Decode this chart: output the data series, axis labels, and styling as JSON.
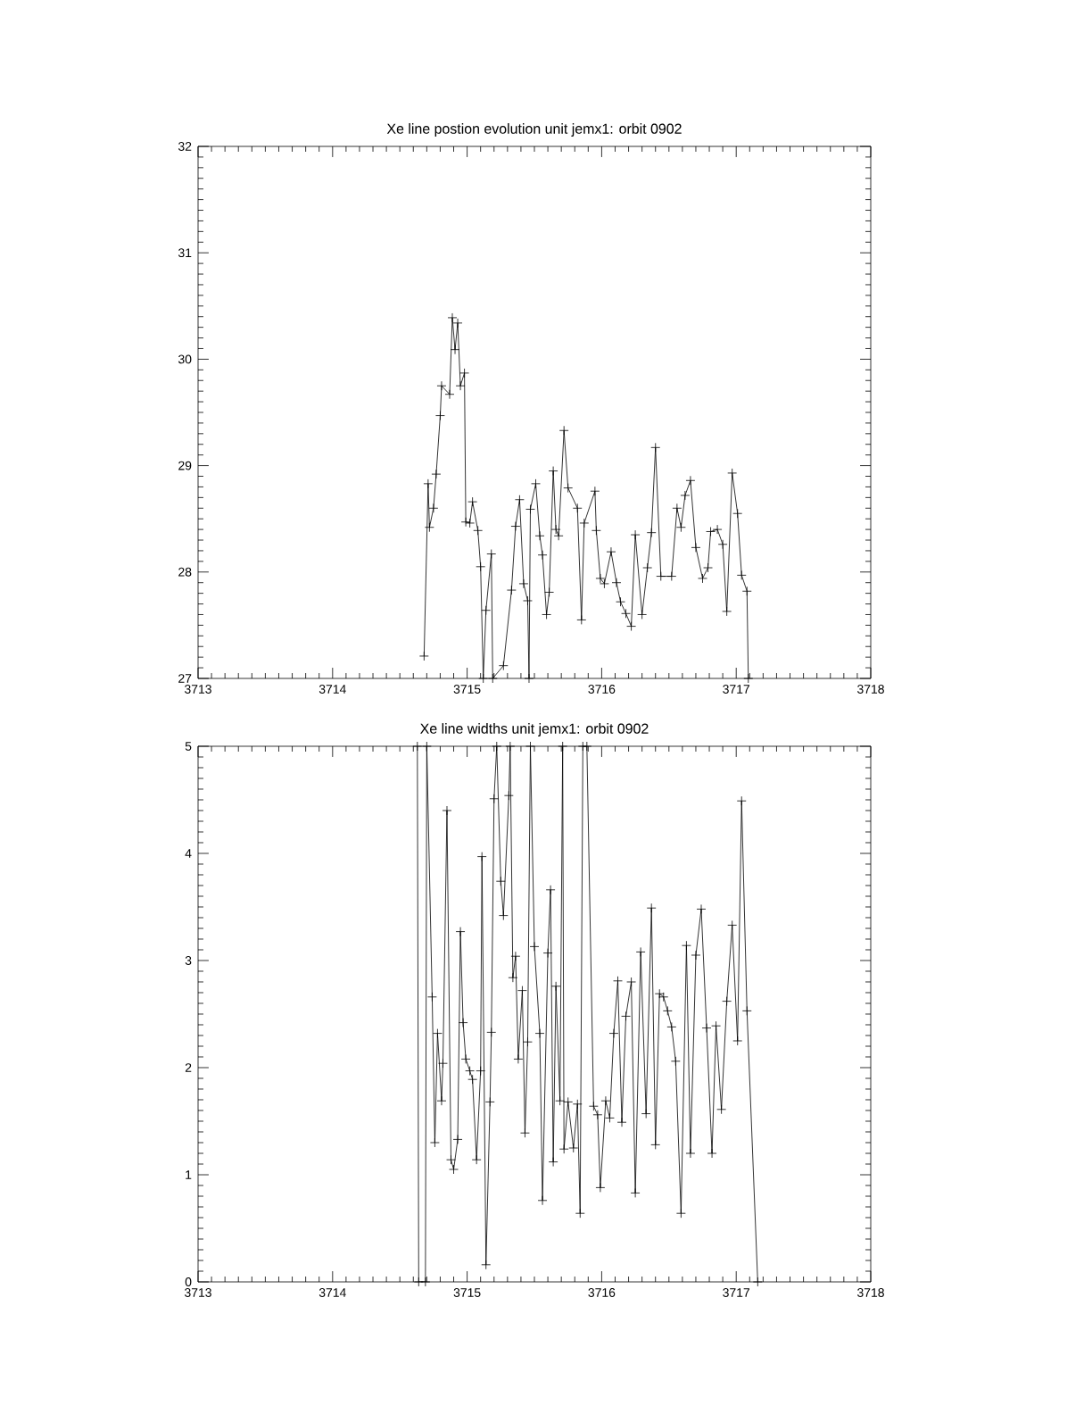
{
  "chart_data": [
    {
      "type": "line",
      "title": "Xe line postion evolution unit jemx1: orbit 0902",
      "color": "#000000",
      "marker": "cross",
      "line_style": "solid",
      "xlim": [
        3713,
        3718
      ],
      "ylim": [
        27,
        32
      ],
      "xticks": [
        3713,
        3714,
        3715,
        3716,
        3717,
        3718
      ],
      "yticks": [
        27,
        28,
        29,
        30,
        31,
        32
      ],
      "x": [
        3714.68,
        3714.71,
        3714.72,
        3714.75,
        3714.77,
        3714.8,
        3714.81,
        3714.87,
        3714.89,
        3714.91,
        3714.93,
        3714.95,
        3714.98,
        3714.99,
        3715.02,
        3715.04,
        3715.08,
        3715.1,
        3715.12,
        3715.14,
        3715.18,
        3715.19,
        3715.27,
        3715.33,
        3715.36,
        3715.39,
        3715.42,
        3715.45,
        3715.46,
        3715.47,
        3715.51,
        3715.54,
        3715.56,
        3715.59,
        3715.61,
        3715.64,
        3715.66,
        3715.68,
        3715.72,
        3715.75,
        3715.82,
        3715.85,
        3715.87,
        3715.95,
        3715.96,
        3715.99,
        3716.02,
        3716.07,
        3716.11,
        3716.14,
        3716.18,
        3716.22,
        3716.25,
        3716.3,
        3716.34,
        3716.37,
        3716.4,
        3716.44,
        3716.52,
        3716.56,
        3716.59,
        3716.62,
        3716.66,
        3716.7,
        3716.75,
        3716.79,
        3716.81,
        3716.86,
        3716.9,
        3716.93,
        3716.97,
        3717.01,
        3717.04,
        3717.08,
        3717.09
      ],
      "values": [
        27.21,
        28.83,
        28.42,
        28.6,
        28.92,
        29.47,
        29.75,
        29.67,
        30.39,
        30.09,
        30.34,
        29.75,
        29.87,
        28.47,
        28.46,
        28.66,
        28.39,
        28.05,
        27.0,
        27.64,
        28.17,
        27.0,
        27.12,
        27.83,
        28.43,
        28.68,
        27.89,
        27.73,
        27.0,
        28.59,
        28.83,
        28.34,
        28.16,
        27.6,
        27.81,
        28.95,
        28.4,
        28.34,
        29.33,
        28.79,
        28.6,
        27.55,
        28.46,
        28.76,
        28.39,
        27.94,
        27.89,
        28.19,
        27.9,
        27.72,
        27.61,
        27.49,
        28.35,
        27.6,
        28.04,
        28.37,
        29.17,
        27.96,
        27.96,
        28.6,
        28.42,
        28.72,
        28.86,
        28.23,
        27.94,
        28.04,
        28.38,
        28.4,
        28.26,
        27.63,
        28.93,
        28.55,
        27.97,
        27.82,
        27.0
      ]
    },
    {
      "type": "line",
      "title": "Xe line widths unit jemx1: orbit 0902",
      "color": "#000000",
      "marker": "cross",
      "line_style": "solid",
      "xlim": [
        3713,
        3718
      ],
      "ylim": [
        0,
        5
      ],
      "xticks": [
        3713,
        3714,
        3715,
        3716,
        3717,
        3718
      ],
      "yticks": [
        0,
        1,
        2,
        3,
        4,
        5
      ],
      "x": [
        3714.63,
        3714.64,
        3714.69,
        3714.7,
        3714.74,
        3714.76,
        3714.78,
        3714.81,
        3714.82,
        3714.85,
        3714.88,
        3714.9,
        3714.93,
        3714.95,
        3714.97,
        3714.99,
        3715.02,
        3715.04,
        3715.07,
        3715.1,
        3715.11,
        3715.14,
        3715.17,
        3715.18,
        3715.2,
        3715.22,
        3715.25,
        3715.27,
        3715.31,
        3715.32,
        3715.34,
        3715.36,
        3715.38,
        3715.41,
        3715.43,
        3715.45,
        3715.47,
        3715.5,
        3715.54,
        3715.56,
        3715.6,
        3715.62,
        3715.64,
        3715.66,
        3715.69,
        3715.71,
        3715.72,
        3715.75,
        3715.79,
        3715.82,
        3715.84,
        3715.86,
        3715.89,
        3715.94,
        3715.97,
        3715.99,
        3716.03,
        3716.06,
        3716.09,
        3716.12,
        3716.15,
        3716.18,
        3716.22,
        3716.25,
        3716.29,
        3716.33,
        3716.37,
        3716.4,
        3716.43,
        3716.46,
        3716.49,
        3716.52,
        3716.55,
        3716.59,
        3716.63,
        3716.66,
        3716.7,
        3716.74,
        3716.78,
        3716.82,
        3716.85,
        3716.89,
        3716.93,
        3716.97,
        3717.01,
        3717.04,
        3717.08,
        3717.16
      ],
      "values": [
        5.0,
        0.0,
        0.0,
        5.0,
        2.66,
        1.3,
        2.32,
        1.69,
        2.04,
        4.4,
        1.14,
        1.05,
        1.33,
        3.27,
        2.42,
        2.08,
        1.97,
        1.89,
        1.14,
        1.97,
        3.97,
        0.16,
        1.68,
        2.33,
        4.51,
        5.0,
        3.74,
        3.42,
        4.54,
        5.0,
        2.84,
        3.04,
        2.08,
        2.72,
        1.39,
        2.24,
        5.0,
        3.13,
        2.32,
        0.76,
        3.07,
        3.66,
        1.12,
        2.76,
        1.69,
        5.0,
        1.24,
        1.68,
        1.25,
        1.66,
        0.64,
        5.0,
        5.0,
        1.64,
        1.56,
        0.88,
        1.69,
        1.53,
        2.32,
        2.81,
        1.49,
        2.48,
        2.8,
        0.83,
        3.08,
        1.57,
        3.49,
        1.28,
        2.69,
        2.66,
        2.53,
        2.38,
        2.06,
        0.64,
        3.14,
        1.2,
        3.05,
        3.48,
        2.37,
        1.2,
        2.39,
        1.61,
        2.62,
        3.33,
        2.25,
        4.49,
        2.53,
        0.0
      ]
    }
  ]
}
